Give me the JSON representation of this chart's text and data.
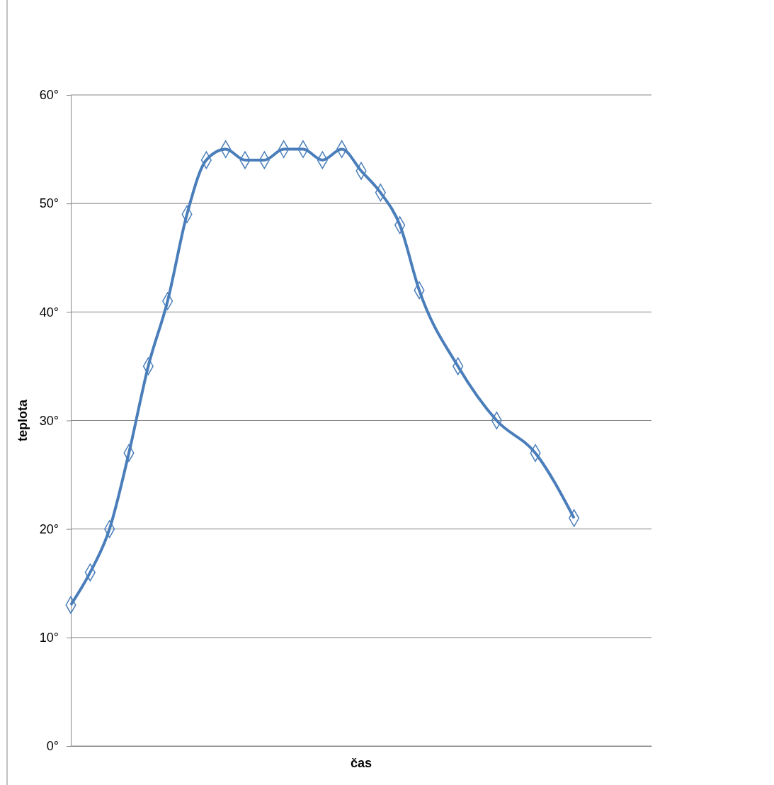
{
  "chart_data": {
    "type": "line",
    "xlabel": "čas",
    "ylabel": "teplota",
    "categories": [
      null,
      null,
      null,
      null,
      null,
      null,
      null,
      null,
      null,
      null,
      null,
      null,
      null,
      null,
      null,
      null,
      null,
      null,
      null,
      null,
      null,
      null,
      null,
      null,
      null,
      null,
      null,
      null,
      null,
      null,
      null
    ],
    "series": [
      {
        "color": "#4a7ebb",
        "values": [
          13,
          16,
          20,
          27,
          35,
          41,
          49,
          54,
          55,
          54,
          54,
          55,
          55,
          54,
          55,
          53,
          51,
          48,
          42,
          null,
          35,
          null,
          30,
          null,
          27,
          null,
          21,
          null,
          null,
          null,
          null
        ]
      }
    ],
    "ylim": [
      0,
      60
    ],
    "yticks": [
      {
        "value": 0,
        "label": "0°"
      },
      {
        "value": 10,
        "label": "10°"
      },
      {
        "value": 20,
        "label": "20°"
      },
      {
        "value": 30,
        "label": "30°"
      },
      {
        "value": 40,
        "label": "40°"
      },
      {
        "value": 50,
        "label": "50°"
      },
      {
        "value": 60,
        "label": "60°"
      }
    ],
    "grid": "y",
    "marker": "diamond",
    "line_style": "solid",
    "tick_labels": "y"
  }
}
